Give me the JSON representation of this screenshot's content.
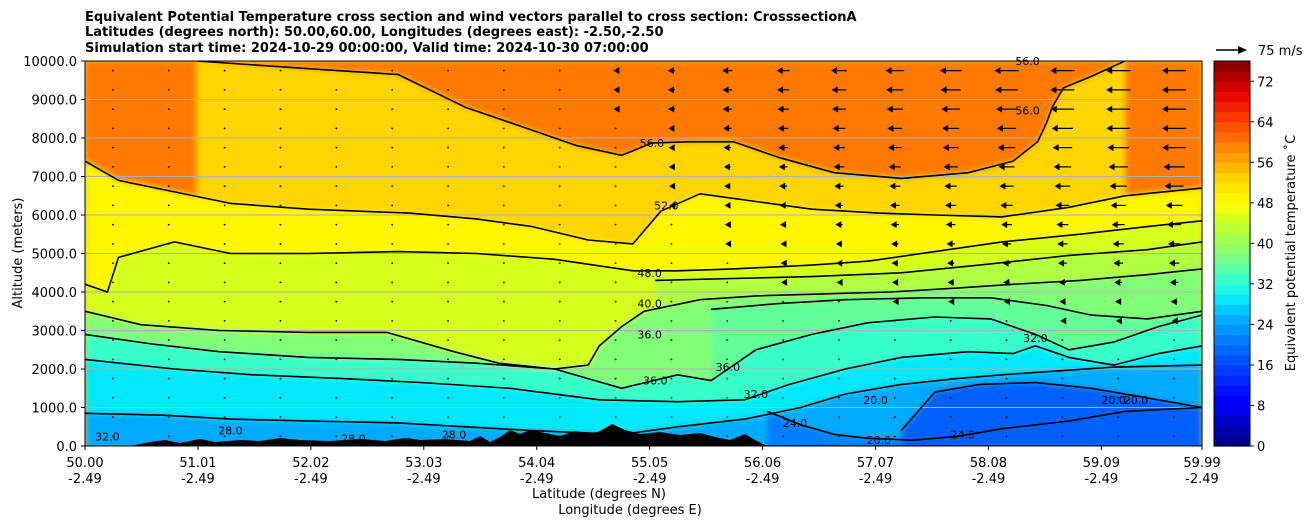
{
  "chart_data": {
    "type": "heatmap",
    "title_lines": [
      "Equivalent Potential Temperature cross section and wind vectors parallel to cross section: CrosssectionA",
      "Latitudes (degrees north): 50.00,60.00, Longitudes (degrees east): -2.50,-2.50",
      "Simulation start time: 2024-10-29 00:00:00, Valid time: 2024-10-30 07:00:00"
    ],
    "ylabel": "Altitude (meters)",
    "xlabel_lat": "Latitude (degrees N)",
    "xlabel_lon": "Longitude (degrees E)",
    "xlim": [
      50.0,
      59.99
    ],
    "ylim": [
      0,
      10000
    ],
    "x_ticks": [
      {
        "lat": "50.00",
        "lon": "-2.49",
        "value": 50.0
      },
      {
        "lat": "51.01",
        "lon": "-2.49",
        "value": 51.01
      },
      {
        "lat": "52.02",
        "lon": "-2.49",
        "value": 52.02
      },
      {
        "lat": "53.03",
        "lon": "-2.49",
        "value": 53.03
      },
      {
        "lat": "54.04",
        "lon": "-2.49",
        "value": 54.04
      },
      {
        "lat": "55.05",
        "lon": "-2.49",
        "value": 55.05
      },
      {
        "lat": "56.06",
        "lon": "-2.49",
        "value": 56.06
      },
      {
        "lat": "57.07",
        "lon": "-2.49",
        "value": 57.07
      },
      {
        "lat": "58.08",
        "lon": "-2.49",
        "value": 58.08
      },
      {
        "lat": "59.09",
        "lon": "-2.49",
        "value": 59.09
      },
      {
        "lat": "59.99",
        "lon": "-2.49",
        "value": 59.99
      }
    ],
    "y_ticks": [
      {
        "label": "0.0",
        "value": 0
      },
      {
        "label": "1000.0",
        "value": 1000
      },
      {
        "label": "2000.0",
        "value": 2000
      },
      {
        "label": "3000.0",
        "value": 3000
      },
      {
        "label": "4000.0",
        "value": 4000
      },
      {
        "label": "5000.0",
        "value": 5000
      },
      {
        "label": "6000.0",
        "value": 6000
      },
      {
        "label": "7000.0",
        "value": 7000
      },
      {
        "label": "8000.0",
        "value": 8000
      },
      {
        "label": "9000.0",
        "value": 9000
      },
      {
        "label": "10000.0",
        "value": 10000
      }
    ],
    "horizontal_grid": true,
    "colorbar": {
      "label": "Equivalent potential temperature ˚C",
      "range": [
        0,
        76
      ],
      "tick_labels": [
        "0",
        "8",
        "16",
        "24",
        "32",
        "40",
        "48",
        "56",
        "64",
        "72"
      ],
      "tick_values": [
        0,
        8,
        16,
        24,
        32,
        40,
        48,
        56,
        64,
        72
      ],
      "colormap": "jet"
    },
    "quiver_key": {
      "label": "75 m/s"
    },
    "contour_levels": [
      {
        "value": 56,
        "label": "56.0",
        "label_positions": [
          [
            55.07,
            7870
          ],
          [
            58.43,
            10000
          ],
          [
            58.43,
            8720
          ]
        ],
        "points": [
          [
            51.0,
            10000
          ],
          [
            52.0,
            9800
          ],
          [
            52.8,
            9650
          ],
          [
            53.4,
            8800
          ],
          [
            53.9,
            8300
          ],
          [
            54.4,
            7800
          ],
          [
            54.8,
            7550
          ],
          [
            55.07,
            7870
          ],
          [
            55.4,
            7900
          ],
          [
            55.8,
            7900
          ],
          [
            56.2,
            7500
          ],
          [
            56.7,
            7100
          ],
          [
            57.3,
            6950
          ],
          [
            57.9,
            7100
          ],
          [
            58.3,
            7400
          ],
          [
            58.52,
            7900
          ],
          [
            58.6,
            8400
          ],
          [
            58.65,
            8800
          ],
          [
            58.75,
            9300
          ],
          [
            59.0,
            9600
          ],
          [
            59.3,
            10000
          ]
        ]
      },
      {
        "value": 52,
        "label": "52.0",
        "label_positions": [
          [
            55.2,
            6250
          ]
        ],
        "points": [
          [
            50.0,
            7400
          ],
          [
            50.3,
            6900
          ],
          [
            50.8,
            6600
          ],
          [
            51.3,
            6300
          ],
          [
            52.0,
            6150
          ],
          [
            52.9,
            6050
          ],
          [
            53.5,
            5900
          ],
          [
            54.0,
            5700
          ],
          [
            54.5,
            5350
          ],
          [
            54.9,
            5250
          ],
          [
            55.15,
            6100
          ],
          [
            55.5,
            6550
          ],
          [
            56.0,
            6350
          ],
          [
            56.5,
            6150
          ],
          [
            57.1,
            6050
          ],
          [
            57.6,
            6000
          ],
          [
            58.2,
            5950
          ],
          [
            58.8,
            6200
          ],
          [
            59.3,
            6500
          ],
          [
            59.99,
            6700
          ]
        ]
      },
      {
        "value": 48,
        "label": "48.0",
        "label_positions": [
          [
            55.05,
            4500
          ]
        ],
        "points": [
          [
            50.0,
            4200
          ],
          [
            50.2,
            4000
          ],
          [
            50.3,
            4900
          ],
          [
            50.8,
            5300
          ],
          [
            51.3,
            5000
          ],
          [
            52.0,
            5000
          ],
          [
            52.8,
            5050
          ],
          [
            53.5,
            5000
          ],
          [
            54.2,
            4850
          ],
          [
            54.9,
            4550
          ],
          [
            55.3,
            4550
          ],
          [
            55.8,
            4600
          ],
          [
            56.5,
            4700
          ],
          [
            57.0,
            4800
          ],
          [
            57.6,
            5050
          ],
          [
            58.2,
            5300
          ],
          [
            58.9,
            5500
          ],
          [
            59.5,
            5700
          ],
          [
            59.99,
            5850
          ]
        ]
      },
      {
        "value": 44,
        "label": "",
        "label_positions": [],
        "points": [
          [
            55.1,
            4300
          ],
          [
            55.8,
            4350
          ],
          [
            56.5,
            4400
          ],
          [
            57.3,
            4500
          ],
          [
            58.0,
            4700
          ],
          [
            58.8,
            4950
          ],
          [
            59.5,
            5100
          ],
          [
            59.99,
            5300
          ]
        ]
      },
      {
        "value": 40,
        "label": "40.0",
        "label_positions": [
          [
            55.05,
            3700
          ]
        ],
        "points": [
          [
            50.0,
            3500
          ],
          [
            50.5,
            3150
          ],
          [
            51.2,
            3000
          ],
          [
            52.0,
            2950
          ],
          [
            52.7,
            2950
          ],
          [
            53.3,
            2450
          ],
          [
            53.7,
            2150
          ],
          [
            54.2,
            2000
          ],
          [
            54.5,
            2100
          ],
          [
            54.6,
            2600
          ],
          [
            54.8,
            3100
          ],
          [
            55.0,
            3500
          ],
          [
            55.5,
            3800
          ],
          [
            56.0,
            3900
          ],
          [
            56.6,
            3950
          ],
          [
            57.2,
            4000
          ],
          [
            57.8,
            4100
          ],
          [
            58.3,
            4200
          ],
          [
            58.9,
            4300
          ],
          [
            59.5,
            4450
          ],
          [
            59.99,
            4600
          ]
        ]
      },
      {
        "value": 38,
        "label": "",
        "label_positions": [],
        "points": [
          [
            55.6,
            3550
          ],
          [
            56.2,
            3700
          ],
          [
            56.8,
            3800
          ],
          [
            57.5,
            3850
          ],
          [
            58.1,
            3850
          ],
          [
            58.6,
            3650
          ],
          [
            59.0,
            3400
          ],
          [
            59.5,
            3300
          ],
          [
            59.99,
            3500
          ]
        ]
      },
      {
        "value": 36,
        "label": "36.0",
        "label_positions": [
          [
            55.05,
            2900
          ],
          [
            55.1,
            1700
          ],
          [
            55.75,
            2050
          ]
        ],
        "points": [
          [
            50.0,
            2900
          ],
          [
            50.6,
            2650
          ],
          [
            51.2,
            2450
          ],
          [
            52.0,
            2300
          ],
          [
            52.8,
            2250
          ],
          [
            53.5,
            2150
          ],
          [
            54.2,
            2000
          ],
          [
            54.8,
            1500
          ],
          [
            55.3,
            1850
          ],
          [
            55.6,
            1700
          ],
          [
            56.0,
            2500
          ],
          [
            56.5,
            2900
          ],
          [
            57.0,
            3200
          ],
          [
            57.6,
            3350
          ],
          [
            58.1,
            3300
          ],
          [
            58.5,
            2900
          ],
          [
            58.8,
            2500
          ],
          [
            59.2,
            2700
          ],
          [
            59.6,
            3100
          ],
          [
            59.99,
            3400
          ]
        ]
      },
      {
        "value": 32,
        "label": "32.0",
        "label_positions": [
          [
            50.2,
            250
          ],
          [
            56.0,
            1350
          ],
          [
            58.5,
            2800
          ]
        ],
        "points": [
          [
            50.0,
            2250
          ],
          [
            50.8,
            2000
          ],
          [
            51.5,
            1850
          ],
          [
            52.3,
            1750
          ],
          [
            53.0,
            1650
          ],
          [
            53.8,
            1500
          ],
          [
            54.6,
            1200
          ],
          [
            55.3,
            1150
          ],
          [
            55.9,
            1200
          ],
          [
            56.3,
            1600
          ],
          [
            56.8,
            2000
          ],
          [
            57.3,
            2300
          ],
          [
            57.9,
            2450
          ],
          [
            58.3,
            2400
          ],
          [
            58.5,
            2600
          ],
          [
            58.8,
            2300
          ],
          [
            59.2,
            2100
          ],
          [
            59.6,
            2400
          ],
          [
            59.99,
            2600
          ]
        ]
      },
      {
        "value": 28,
        "label": "28.0",
        "label_positions": [
          [
            51.3,
            400
          ],
          [
            52.4,
            200
          ],
          [
            53.3,
            300
          ]
        ],
        "points": [
          [
            50.0,
            850
          ],
          [
            50.7,
            800
          ],
          [
            51.3,
            700
          ],
          [
            52.0,
            650
          ],
          [
            52.8,
            600
          ],
          [
            53.4,
            500
          ],
          [
            54.0,
            400
          ],
          [
            54.8,
            300
          ],
          [
            55.3,
            500
          ],
          [
            55.9,
            700
          ],
          [
            56.4,
            1000
          ],
          [
            56.8,
            1350
          ],
          [
            57.3,
            1600
          ],
          [
            57.8,
            1750
          ],
          [
            58.2,
            1850
          ],
          [
            58.7,
            1950
          ],
          [
            59.2,
            2050
          ],
          [
            59.99,
            2100
          ]
        ]
      },
      {
        "value": 24,
        "label": "24.0",
        "label_positions": [
          [
            56.35,
            600
          ],
          [
            57.85,
            300
          ]
        ],
        "points": [
          [
            56.1,
            900
          ],
          [
            56.4,
            550
          ],
          [
            56.7,
            300
          ],
          [
            57.0,
            200
          ],
          [
            57.4,
            150
          ],
          [
            57.8,
            250
          ],
          [
            58.2,
            450
          ],
          [
            58.8,
            650
          ],
          [
            59.3,
            900
          ],
          [
            59.99,
            1000
          ]
        ]
      },
      {
        "value": 20,
        "label": "20.0",
        "label_positions": [
          [
            57.07,
            1200
          ],
          [
            57.1,
            150
          ],
          [
            59.2,
            1200
          ],
          [
            59.4,
            1200
          ]
        ],
        "points": [
          [
            57.3,
            400
          ],
          [
            57.6,
            1400
          ],
          [
            58.0,
            1600
          ],
          [
            58.5,
            1650
          ],
          [
            59.0,
            1500
          ],
          [
            59.4,
            1300
          ],
          [
            59.99,
            1000
          ]
        ]
      }
    ]
  }
}
